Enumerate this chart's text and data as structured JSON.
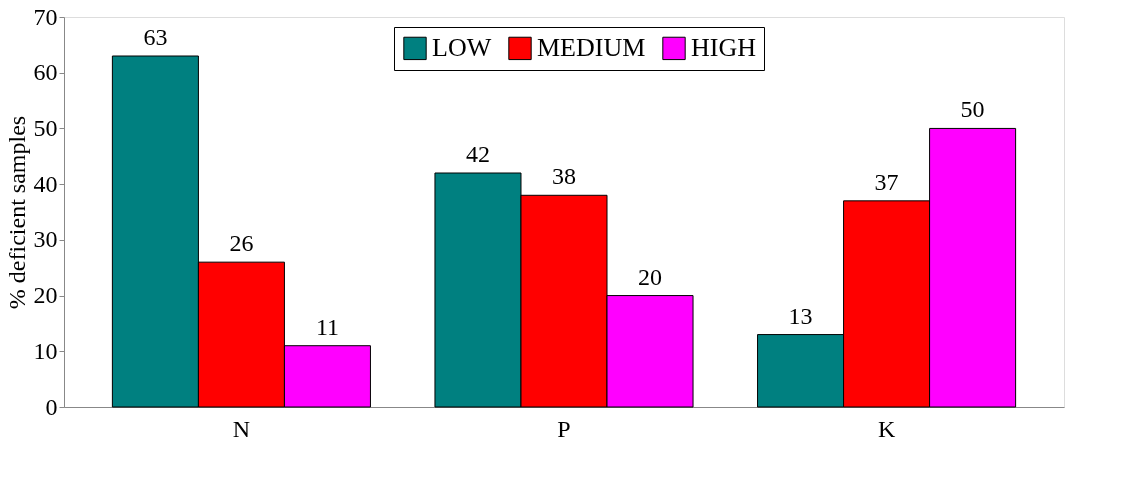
{
  "chart_data": {
    "type": "bar",
    "ylabel": "% deficient samples",
    "categories": [
      "N",
      "P",
      "K"
    ],
    "series": [
      {
        "name": "LOW",
        "color": "#008080",
        "values": [
          63,
          42,
          13
        ]
      },
      {
        "name": "MEDIUM",
        "color": "#ff0000",
        "values": [
          26,
          38,
          37
        ]
      },
      {
        "name": "HIGH",
        "color": "#ff00ff",
        "values": [
          11,
          20,
          50
        ]
      }
    ],
    "ylim": [
      0,
      70
    ],
    "yticks": [
      0,
      10,
      20,
      30,
      40,
      50,
      60,
      70
    ],
    "grid": false,
    "legend": "top",
    "data_labels": true
  }
}
